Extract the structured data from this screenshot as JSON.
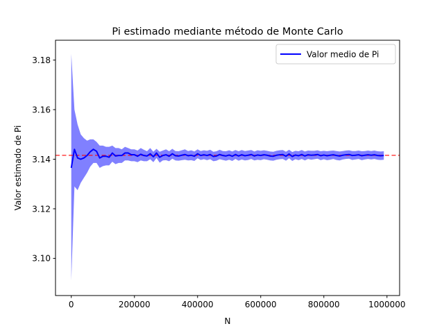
{
  "chart_data": {
    "type": "line",
    "title": "Pi estimado mediante método de Monte Carlo",
    "xlabel": "N",
    "ylabel": "Valor estimado de Pi",
    "xlim": [
      -50000,
      1040000
    ],
    "ylim": [
      3.085,
      3.188
    ],
    "xticks": [
      0,
      200000,
      400000,
      600000,
      800000,
      1000000
    ],
    "xtick_labels": [
      "0",
      "200000",
      "400000",
      "600000",
      "800000",
      "1000000"
    ],
    "yticks": [
      3.1,
      3.12,
      3.14,
      3.16,
      3.18
    ],
    "ytick_labels": [
      "3.10",
      "3.12",
      "3.14",
      "3.16",
      "3.18"
    ],
    "grid": false,
    "legend_position": "top-right",
    "reference_line": {
      "y": 3.14159,
      "color": "#ff0000",
      "style": "dashed"
    },
    "series": [
      {
        "name": "Valor medio de Pi",
        "color": "#0000ff",
        "x": [
          0,
          10000,
          20000,
          30000,
          40000,
          50000,
          60000,
          70000,
          80000,
          90000,
          100000,
          110000,
          120000,
          130000,
          140000,
          150000,
          160000,
          170000,
          180000,
          190000,
          200000,
          210000,
          220000,
          230000,
          240000,
          250000,
          260000,
          270000,
          280000,
          290000,
          300000,
          310000,
          320000,
          330000,
          340000,
          350000,
          360000,
          370000,
          380000,
          390000,
          400000,
          410000,
          420000,
          430000,
          440000,
          450000,
          460000,
          470000,
          480000,
          490000,
          500000,
          510000,
          520000,
          530000,
          540000,
          550000,
          560000,
          570000,
          580000,
          590000,
          600000,
          610000,
          620000,
          630000,
          640000,
          650000,
          660000,
          670000,
          680000,
          690000,
          700000,
          710000,
          720000,
          730000,
          740000,
          750000,
          760000,
          770000,
          780000,
          790000,
          800000,
          810000,
          820000,
          830000,
          840000,
          850000,
          860000,
          870000,
          880000,
          890000,
          900000,
          910000,
          920000,
          930000,
          940000,
          950000,
          960000,
          970000,
          980000,
          990000
        ],
        "values": [
          3.1365,
          3.144,
          3.1405,
          3.14,
          3.1405,
          3.1415,
          3.143,
          3.144,
          3.1432,
          3.1405,
          3.1412,
          3.1412,
          3.1408,
          3.1425,
          3.1413,
          3.1415,
          3.1415,
          3.1425,
          3.1425,
          3.1418,
          3.1418,
          3.1412,
          3.142,
          3.1415,
          3.1413,
          3.1422,
          3.141,
          3.1425,
          3.1408,
          3.1415,
          3.1418,
          3.1412,
          3.1422,
          3.1414,
          3.1413,
          3.1416,
          3.1419,
          3.1414,
          3.1416,
          3.1412,
          3.1422,
          3.1415,
          3.1418,
          3.1415,
          3.1419,
          3.1411,
          3.1413,
          3.1419,
          3.1415,
          3.1413,
          3.1417,
          3.1412,
          3.1419,
          3.1413,
          3.1418,
          3.1414,
          3.1416,
          3.1419,
          3.1413,
          3.1417,
          3.1415,
          3.1418,
          3.1416,
          3.1413,
          3.1412,
          3.1416,
          3.1418,
          3.1419,
          3.1412,
          3.1421,
          3.1411,
          3.1417,
          3.1414,
          3.1419,
          3.1413,
          3.1418,
          3.1416,
          3.1417,
          3.1419,
          3.1414,
          3.1417,
          3.1414,
          3.1416,
          3.1418,
          3.1415,
          3.1413,
          3.1416,
          3.1418,
          3.1419,
          3.1415,
          3.1416,
          3.1418,
          3.1414,
          3.1416,
          3.1418,
          3.1416,
          3.1418,
          3.1415,
          3.1414,
          3.1415
        ],
        "band": {
          "color": "#8080ff",
          "upper": [
            3.1825,
            3.16,
            3.154,
            3.15,
            3.1485,
            3.1475,
            3.148,
            3.148,
            3.147,
            3.1455,
            3.1455,
            3.145,
            3.145,
            3.1455,
            3.1445,
            3.1445,
            3.144,
            3.145,
            3.1445,
            3.144,
            3.144,
            3.1435,
            3.1445,
            3.1438,
            3.1432,
            3.1445,
            3.143,
            3.1442,
            3.143,
            3.1435,
            3.144,
            3.1432,
            3.1442,
            3.1433,
            3.1432,
            3.1436,
            3.144,
            3.1433,
            3.1436,
            3.1431,
            3.144,
            3.1433,
            3.1436,
            3.1434,
            3.1438,
            3.143,
            3.1432,
            3.1438,
            3.1433,
            3.1432,
            3.1436,
            3.1431,
            3.1437,
            3.1432,
            3.1437,
            3.1433,
            3.1435,
            3.1437,
            3.1431,
            3.1436,
            3.1434,
            3.1436,
            3.1434,
            3.1431,
            3.143,
            3.1434,
            3.1436,
            3.1437,
            3.143,
            3.1438,
            3.1429,
            3.1434,
            3.1432,
            3.1437,
            3.1431,
            3.1435,
            3.1434,
            3.1434,
            3.1436,
            3.1432,
            3.1434,
            3.1432,
            3.1434,
            3.1435,
            3.1433,
            3.1431,
            3.1433,
            3.1435,
            3.1436,
            3.1433,
            3.1433,
            3.1435,
            3.1432,
            3.1433,
            3.1435,
            3.1433,
            3.1435,
            3.1432,
            3.1431,
            3.1432
          ],
          "lower": [
            3.091,
            3.129,
            3.1275,
            3.1305,
            3.1325,
            3.1345,
            3.137,
            3.1385,
            3.1385,
            3.1365,
            3.1372,
            3.1375,
            3.1375,
            3.139,
            3.138,
            3.1385,
            3.1385,
            3.1395,
            3.1395,
            3.1392,
            3.1392,
            3.1388,
            3.1395,
            3.1392,
            3.1392,
            3.14,
            3.1388,
            3.1405,
            3.1386,
            3.1395,
            3.1396,
            3.1392,
            3.1402,
            3.1395,
            3.1394,
            3.1396,
            3.1398,
            3.1395,
            3.1396,
            3.1393,
            3.1404,
            3.1397,
            3.14,
            3.1396,
            3.14,
            3.1392,
            3.1394,
            3.14,
            3.1397,
            3.1394,
            3.1398,
            3.1393,
            3.1401,
            3.1394,
            3.1399,
            3.1395,
            3.1397,
            3.1401,
            3.1395,
            3.1398,
            3.1396,
            3.14,
            3.1398,
            3.1395,
            3.1394,
            3.1398,
            3.14,
            3.1401,
            3.1394,
            3.1404,
            3.1393,
            3.14,
            3.1396,
            3.1401,
            3.1395,
            3.1401,
            3.1398,
            3.14,
            3.1402,
            3.1396,
            3.14,
            3.1396,
            3.1398,
            3.1401,
            3.1397,
            3.1395,
            3.1399,
            3.1401,
            3.1402,
            3.1397,
            3.1399,
            3.1401,
            3.1396,
            3.1399,
            3.1401,
            3.1399,
            3.1401,
            3.1398,
            3.1397,
            3.1398
          ]
        }
      }
    ]
  }
}
